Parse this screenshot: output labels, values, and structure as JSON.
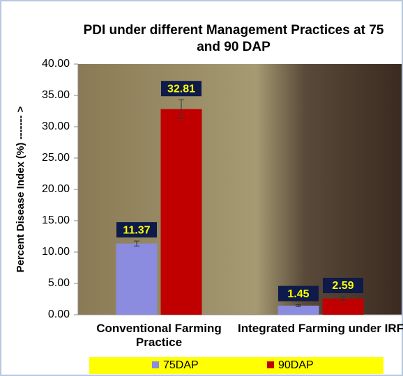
{
  "chart_data": {
    "type": "bar",
    "title": "PDI under different Management Practices at 75 and 90 DAP",
    "y_label": "Percent Disease Index (%) ------- >",
    "categories": [
      "Conventional Farming Practice",
      "Integrated Farming under IRF"
    ],
    "series": [
      {
        "name": "75DAP",
        "color": "#8b8bdf",
        "values": [
          11.37,
          1.45
        ],
        "errors": [
          0.4,
          0.15
        ]
      },
      {
        "name": "90DAP",
        "color": "#c00000",
        "values": [
          32.81,
          2.59
        ],
        "errors": [
          1.5,
          0.3
        ]
      }
    ],
    "ylim": [
      0,
      40
    ],
    "yticks": [
      {
        "value": 0,
        "label": "0.00"
      },
      {
        "value": 5,
        "label": "5.00"
      },
      {
        "value": 10,
        "label": "10.00"
      },
      {
        "value": 15,
        "label": "15.00"
      },
      {
        "value": 20,
        "label": "20.00"
      },
      {
        "value": 25,
        "label": "25.00"
      },
      {
        "value": 30,
        "label": "30.00"
      },
      {
        "value": 35,
        "label": "35.00"
      },
      {
        "value": 40,
        "label": "40.00"
      }
    ],
    "legend": "bottom"
  }
}
